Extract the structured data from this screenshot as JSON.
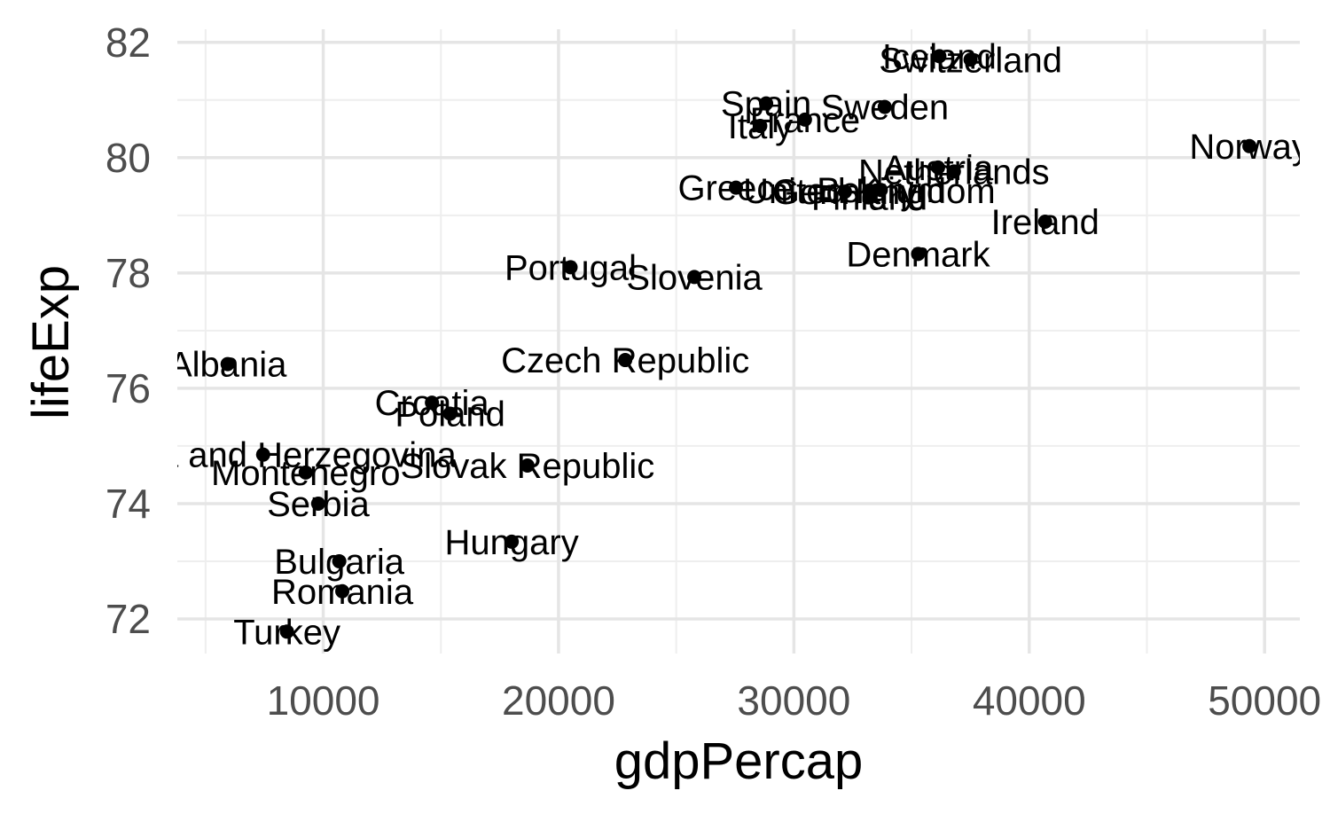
{
  "chart_data": {
    "type": "scatter",
    "title": "",
    "xlabel": "gdpPercap",
    "ylabel": "lifeExp",
    "xlim": [
      3800,
      51500
    ],
    "ylim": [
      71.4,
      82.35
    ],
    "x_ticks": [
      10000,
      20000,
      30000,
      40000,
      50000
    ],
    "x_tick_labels": [
      "10000",
      "20000",
      "30000",
      "40000",
      "50000"
    ],
    "x_minor": [
      5000,
      15000,
      25000,
      35000,
      45000
    ],
    "y_ticks": [
      72,
      74,
      76,
      78,
      80,
      82
    ],
    "y_tick_labels": [
      "72",
      "74",
      "76",
      "78",
      "80",
      "82"
    ],
    "y_minor": [
      73,
      75,
      77,
      79,
      81
    ],
    "grid": true,
    "legend": "none",
    "points": [
      {
        "label": "Norway",
        "x": 49357,
        "y": 80.2
      },
      {
        "label": "Iceland",
        "x": 36181,
        "y": 81.76
      },
      {
        "label": "Switzerland",
        "x": 37506,
        "y": 81.7
      },
      {
        "label": "Sweden",
        "x": 33860,
        "y": 80.88
      },
      {
        "label": "Spain",
        "x": 28821,
        "y": 80.94
      },
      {
        "label": "France",
        "x": 30470,
        "y": 80.66
      },
      {
        "label": "Italy",
        "x": 28570,
        "y": 80.55
      },
      {
        "label": "Netherlands",
        "x": 36798,
        "y": 79.76
      },
      {
        "label": "Austria",
        "x": 36126,
        "y": 79.83
      },
      {
        "label": "Ireland",
        "x": 40676,
        "y": 78.89
      },
      {
        "label": "Denmark",
        "x": 35278,
        "y": 78.33
      },
      {
        "label": "Greece",
        "x": 27538,
        "y": 79.48
      },
      {
        "label": "Germany",
        "x": 32170,
        "y": 79.41
      },
      {
        "label": "Belgium",
        "x": 33693,
        "y": 79.44
      },
      {
        "label": "United Kingdom",
        "x": 33203,
        "y": 79.43
      },
      {
        "label": "Finland",
        "x": 33207,
        "y": 79.31
      },
      {
        "label": "Portugal",
        "x": 20510,
        "y": 78.1
      },
      {
        "label": "Slovenia",
        "x": 25768,
        "y": 77.93
      },
      {
        "label": "Czech Republic",
        "x": 22833,
        "y": 76.49
      },
      {
        "label": "Albania",
        "x": 5937,
        "y": 76.42
      },
      {
        "label": "Croatia",
        "x": 14619,
        "y": 75.75
      },
      {
        "label": "Poland",
        "x": 15390,
        "y": 75.56
      },
      {
        "label": "Bosnia and Herzegovina",
        "x": 7446,
        "y": 74.85
      },
      {
        "label": "Montenegro",
        "x": 9254,
        "y": 74.54
      },
      {
        "label": "Slovak Republic",
        "x": 18678,
        "y": 74.66
      },
      {
        "label": "Serbia",
        "x": 9787,
        "y": 74.0
      },
      {
        "label": "Hungary",
        "x": 18009,
        "y": 73.34
      },
      {
        "label": "Bulgaria",
        "x": 10681,
        "y": 73.0
      },
      {
        "label": "Romania",
        "x": 10809,
        "y": 72.48
      },
      {
        "label": "Turkey",
        "x": 8458,
        "y": 71.78
      }
    ]
  }
}
